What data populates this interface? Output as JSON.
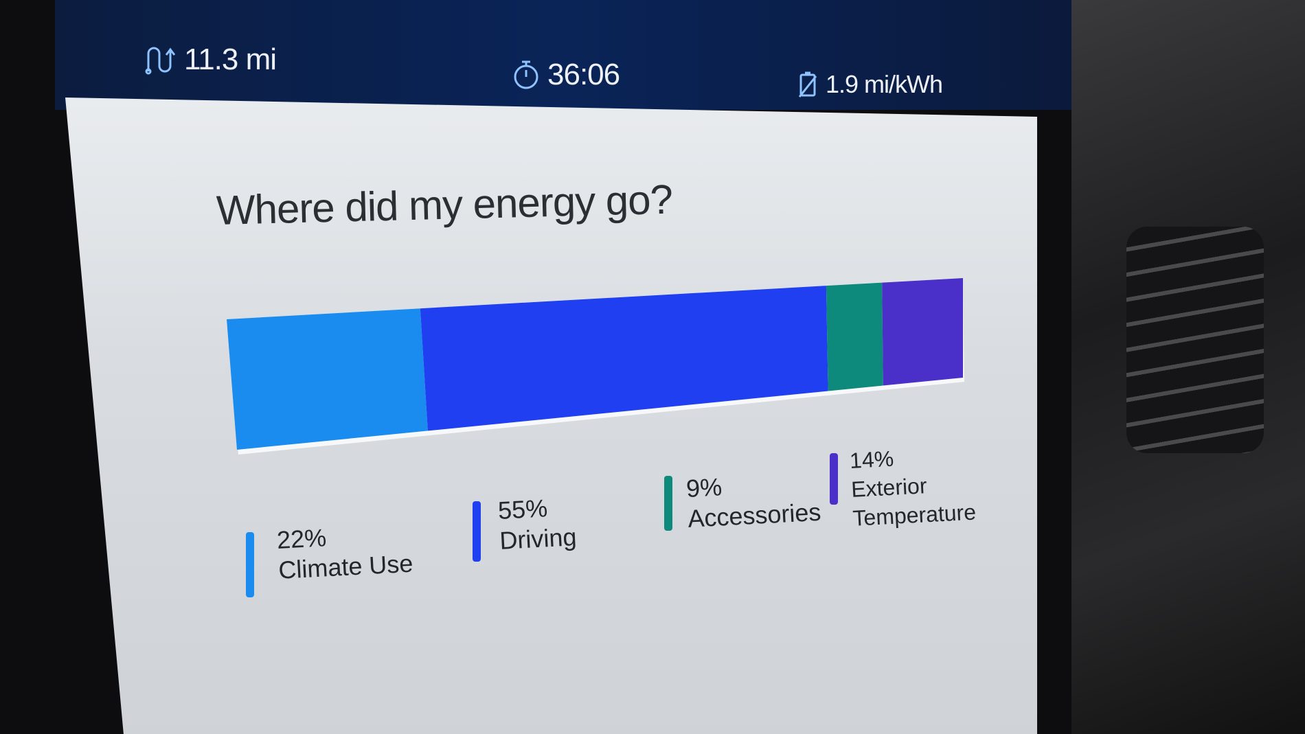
{
  "trip_stats": {
    "distance": {
      "icon": "route-icon",
      "value": "11.3 mi"
    },
    "duration": {
      "icon": "stopwatch-icon",
      "value": "36:06"
    },
    "efficiency": {
      "icon": "battery-efficiency-icon",
      "value": "1.9 mi/kWh"
    }
  },
  "title": "Where did my energy go?",
  "chart_data": {
    "type": "bar",
    "orientation": "horizontal-stacked",
    "categories": [
      "Climate Use",
      "Driving",
      "Accessories",
      "Exterior Temperature"
    ],
    "values": [
      22,
      55,
      9,
      14
    ],
    "unit": "%",
    "colors": [
      "#1a8cf0",
      "#1f3ff0",
      "#0e8a7c",
      "#4a2fc8"
    ]
  },
  "legend": [
    {
      "pct": "22%",
      "label": "Climate Use"
    },
    {
      "pct": "55%",
      "label": "Driving"
    },
    {
      "pct": "9%",
      "label": "Accessories"
    },
    {
      "pct": "14%",
      "label": "Exterior",
      "label2": "Temperature"
    }
  ]
}
